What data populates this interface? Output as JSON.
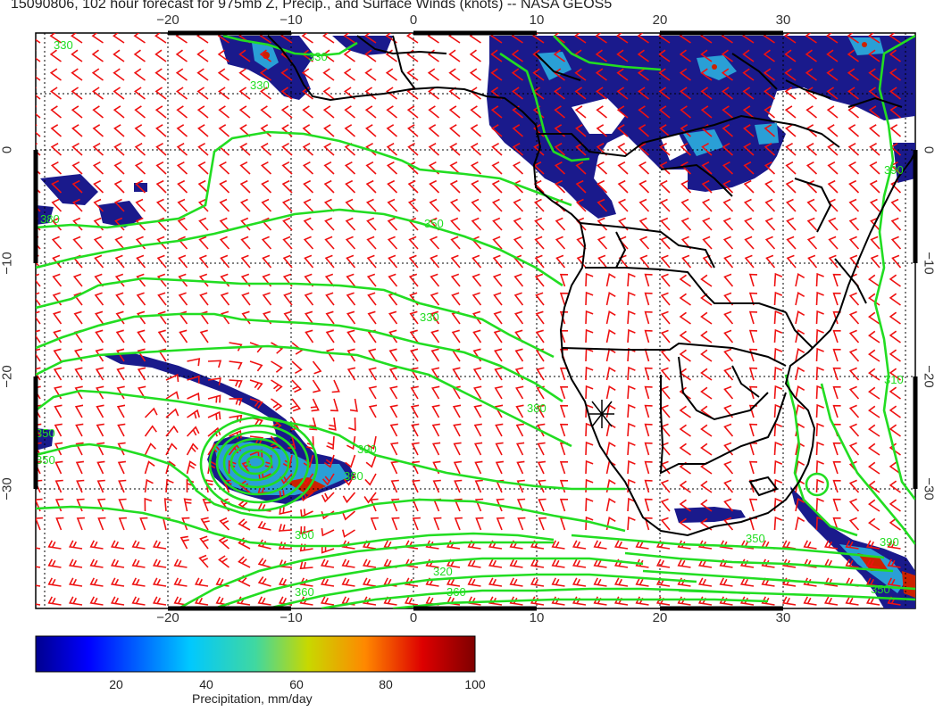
{
  "title": "15090806, 102 hour forecast for 975mb Z, Precip., and Surface Winds (knots) -- NASA GEOS5",
  "map": {
    "lon_ticks_top": [
      "−20",
      "−10",
      "0",
      "10",
      "20",
      "30"
    ],
    "lon_ticks_bottom": [
      "−20",
      "−10",
      "0",
      "10",
      "20",
      "30"
    ],
    "lat_ticks_left": [
      "0",
      "−10",
      "−20",
      "−30"
    ],
    "lat_ticks_right": [
      "0",
      "−10",
      "−20",
      "−30"
    ],
    "contour_labels": [
      "330",
      "330",
      "330",
      "350",
      "330",
      "380",
      "350",
      "350",
      "360",
      "380",
      "390",
      "380",
      "360",
      "360",
      "350",
      "390",
      "390",
      "310",
      "320",
      "350"
    ],
    "colors": {
      "coastline": "#000000",
      "contour": "#22dd22",
      "wind_barb": "#ee1111",
      "grid": "#000000",
      "precip_low": "#1a1a8c",
      "precip_mid": "#2a9fd6",
      "precip_high": "#cc2200"
    }
  },
  "colorbar": {
    "label": "Precipitation, mm/day",
    "ticks": [
      "20",
      "40",
      "60",
      "80",
      "100"
    ],
    "tick_values": [
      20,
      40,
      60,
      80,
      100
    ],
    "min": 0,
    "max": 100
  }
}
